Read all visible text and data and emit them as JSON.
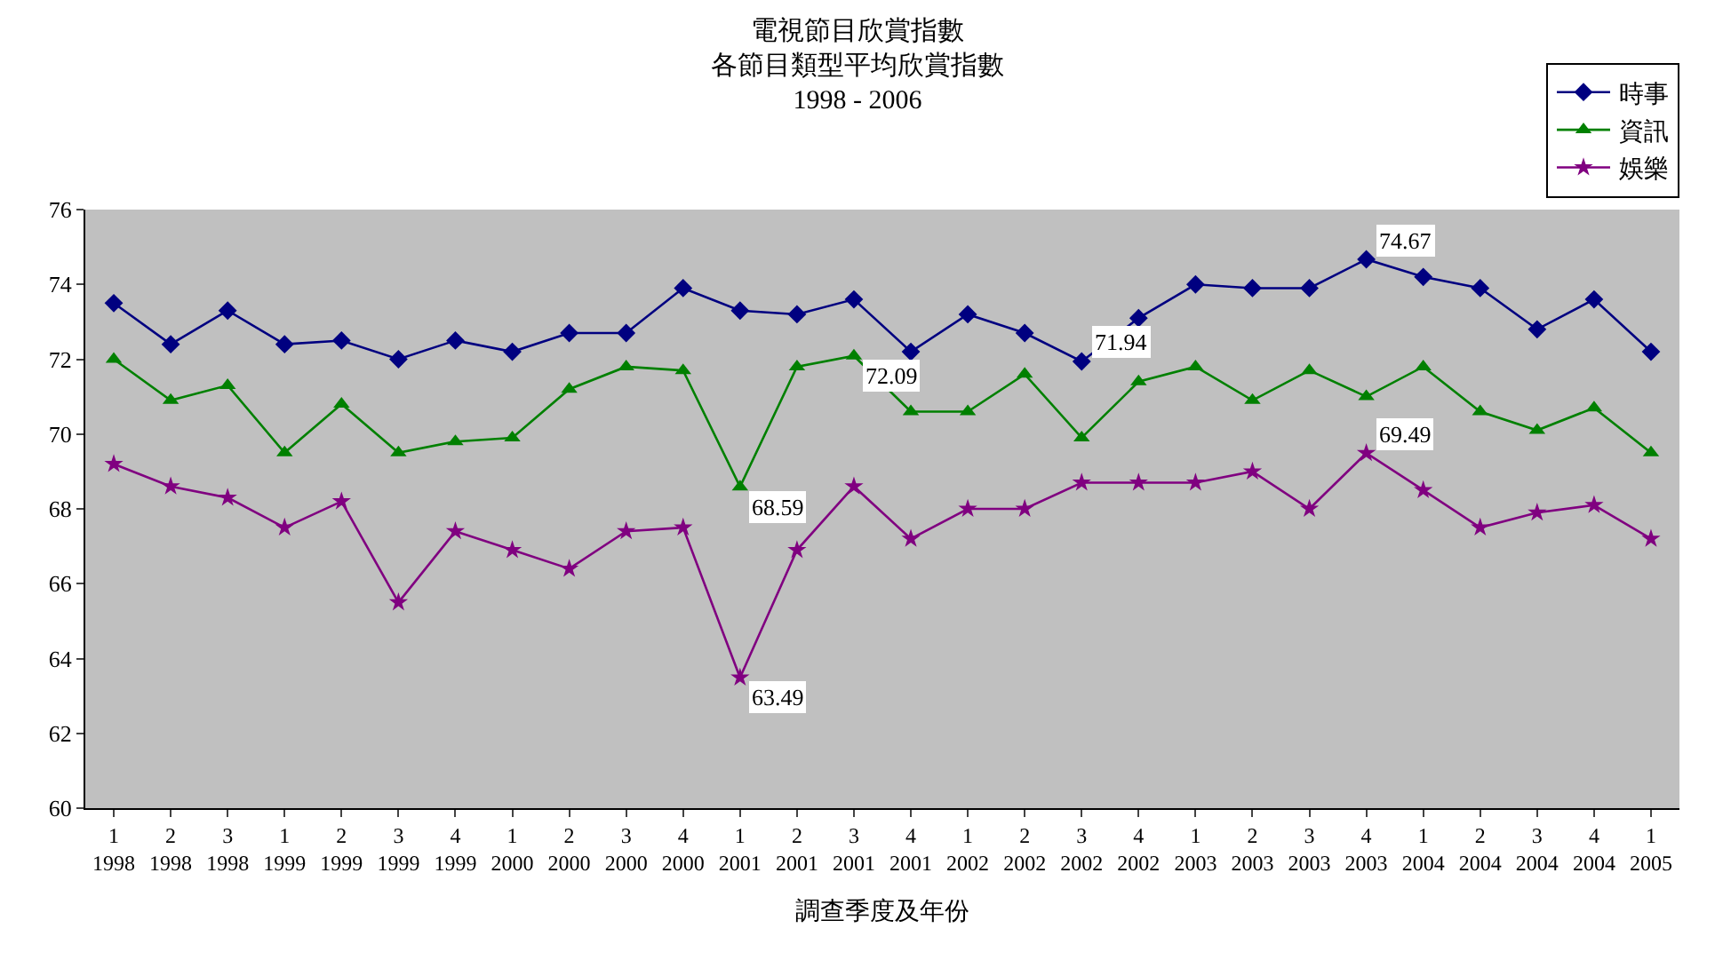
{
  "chart_data": {
    "type": "line",
    "title": "電視節目欣賞指數",
    "subtitle": "各節目類型平均欣賞指數\n1998 - 2006",
    "xlabel": "調查季度及年份",
    "categories": [
      "1\n1998",
      "2\n1998",
      "3\n1998",
      "1\n1999",
      "2\n1999",
      "3\n1999",
      "4\n1999",
      "1\n2000",
      "2\n2000",
      "3\n2000",
      "4\n2000",
      "1\n2001",
      "2\n2001",
      "3\n2001",
      "4\n2001",
      "1\n2002",
      "2\n2002",
      "3\n2002",
      "4\n2002",
      "1\n2003",
      "2\n2003",
      "3\n2003",
      "4\n2003",
      "1\n2004",
      "2\n2004",
      "3\n2004",
      "4\n2004",
      "1\n2005"
    ],
    "series": [
      {
        "name": "時事",
        "color": "#000080",
        "marker": "diamond",
        "values": [
          73.5,
          72.4,
          73.3,
          72.4,
          72.5,
          72.0,
          72.5,
          72.2,
          72.7,
          72.7,
          73.9,
          73.3,
          73.2,
          73.6,
          72.2,
          73.2,
          72.7,
          71.94,
          73.1,
          74.0,
          73.9,
          73.9,
          74.67,
          74.2,
          73.9,
          72.8,
          73.6,
          72.2
        ],
        "value_labels": [
          null,
          null,
          null,
          null,
          null,
          null,
          null,
          null,
          null,
          null,
          null,
          null,
          null,
          null,
          null,
          null,
          null,
          "71.94",
          null,
          null,
          null,
          null,
          "74.67",
          null,
          null,
          null,
          null,
          null
        ]
      },
      {
        "name": "資訊",
        "color": "#008000",
        "marker": "triangle",
        "values": [
          72.0,
          70.9,
          71.3,
          69.5,
          70.8,
          69.5,
          69.8,
          69.9,
          71.2,
          71.8,
          71.7,
          68.59,
          71.8,
          72.09,
          70.6,
          70.6,
          71.6,
          69.9,
          71.4,
          71.8,
          70.9,
          71.7,
          71.0,
          71.8,
          70.6,
          70.1,
          70.7,
          69.5
        ],
        "value_labels": [
          null,
          null,
          null,
          null,
          null,
          null,
          null,
          null,
          null,
          null,
          null,
          "68.59",
          null,
          "72.09",
          null,
          null,
          null,
          null,
          null,
          null,
          null,
          null,
          null,
          null,
          null,
          null,
          null,
          null
        ]
      },
      {
        "name": "娛樂",
        "color": "#800080",
        "marker": "star",
        "values": [
          69.2,
          68.6,
          68.3,
          67.5,
          68.2,
          65.5,
          67.4,
          66.9,
          66.4,
          67.4,
          67.5,
          63.49,
          66.9,
          68.6,
          67.2,
          68.0,
          68.0,
          68.7,
          68.7,
          68.7,
          69.0,
          68.0,
          69.49,
          68.5,
          67.5,
          67.9,
          68.1,
          67.2
        ],
        "value_labels": [
          null,
          null,
          null,
          null,
          null,
          null,
          null,
          null,
          null,
          null,
          null,
          "63.49",
          null,
          null,
          null,
          null,
          null,
          null,
          null,
          null,
          null,
          null,
          "69.49",
          null,
          null,
          null,
          null,
          null
        ]
      }
    ],
    "ylim": [
      60,
      76
    ],
    "yticks": [
      60,
      62,
      64,
      66,
      68,
      70,
      72,
      74,
      76
    ],
    "grid": false,
    "legend": "top right"
  }
}
